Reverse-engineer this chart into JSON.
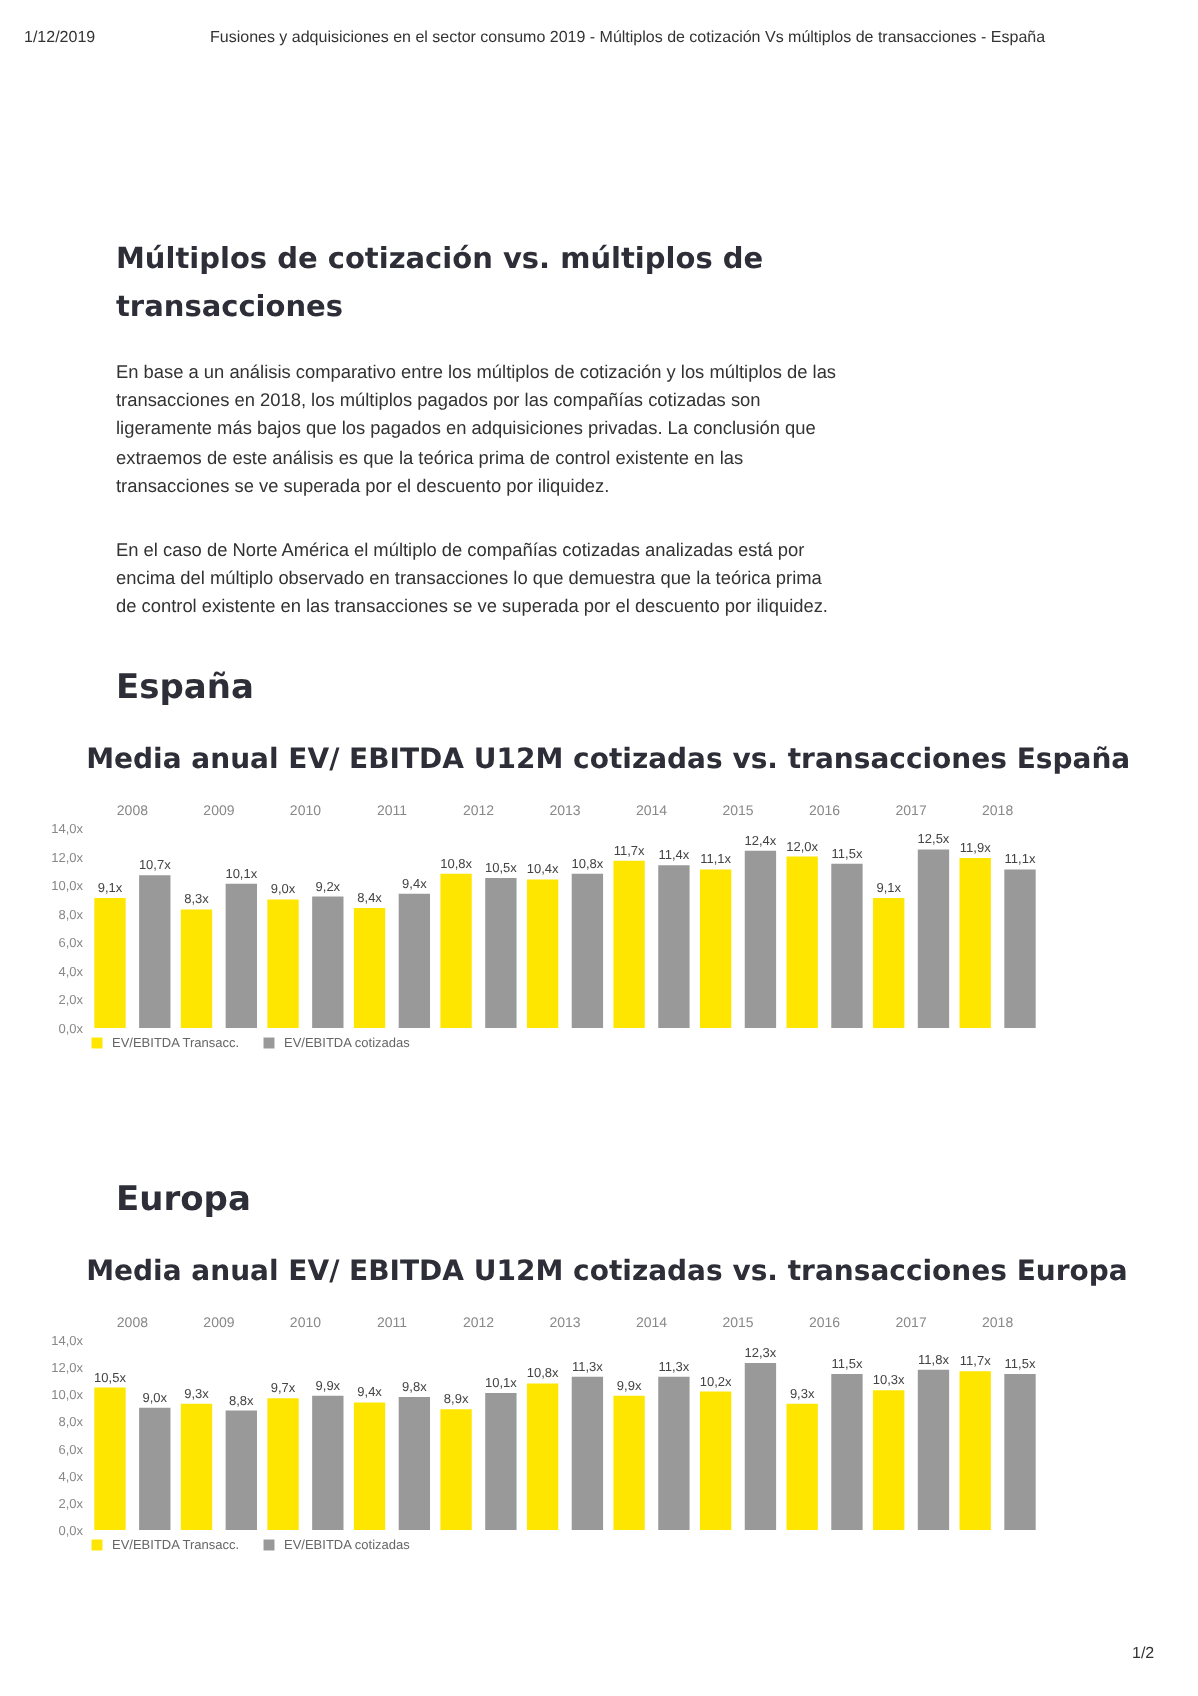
{
  "chart_data": [
    {
      "type": "bar",
      "title": "Media anual EV/ EBITDA U12M cotizadas vs. transacciones España",
      "annotations": [
        "1/12/2019",
        "Fusiones y adquisiciones en el sector consumo 2019 - Múltiplos de cotización Vs múltiplos de transacciones - España",
        "Múltiplos de cotización vs. múltiplos de transacciones",
        "En base a un análisis comparativo entre los múltiplos de cotización y los múltiplos de las transacciones en 2018, los múltiplos pagados por las compañías cotizadas son ligeramente más bajos que los pagados en adquisiciones privadas. La conclusión que extraemos de este análisis es que la teórica prima de control existente en las transacciones se ve superada por el descuento por iliquidez.",
        "En el caso de Norte América el múltiplo de compañías cotizadas analizadas está por encima del múltiplo observado en transacciones lo que demuestra que la teórica prima de control existente en las transacciones se ve superada por el descuento por iliquidez.",
        "España"
      ],
      "categories": [
        "2008",
        "2009",
        "2010",
        "2011",
        "2012",
        "2013",
        "2014",
        "2015",
        "2016",
        "2017",
        "2018"
      ],
      "series": [
        {
          "name": "EV/EBITDA Transacc.",
          "color": "#ffe600",
          "values": [
            9.1,
            8.3,
            9.0,
            8.4,
            10.8,
            10.4,
            11.7,
            11.1,
            12.0,
            9.1,
            11.9
          ],
          "value_labels": [
            "9,1x",
            "8,3x",
            "9,0x",
            "8,4x",
            "10,8x",
            "10,4x",
            "11,7x",
            "11,1x",
            "12,0x",
            "9,1x",
            "11,9x"
          ]
        },
        {
          "name": "EV/EBITDA cotizadas",
          "color": "#999999",
          "values": [
            10.7,
            10.1,
            9.2,
            9.4,
            10.5,
            10.8,
            11.4,
            12.4,
            11.5,
            12.5,
            11.1
          ],
          "value_labels": [
            "10,7x",
            "10,1x",
            "9,2x",
            "9,4x",
            "10,5x",
            "10,8x",
            "11,4x",
            "12,4x",
            "11,5x",
            "12,5x",
            "11,1x"
          ]
        }
      ],
      "ylim": [
        0,
        14
      ],
      "yticks": [
        {
          "value": 0,
          "label": "0,0x"
        },
        {
          "value": 2,
          "label": "2,0x"
        },
        {
          "value": 4,
          "label": "4,0x"
        },
        {
          "value": 6,
          "label": "6,0x"
        },
        {
          "value": 8,
          "label": "8,0x"
        },
        {
          "value": 10,
          "label": "10,0x"
        },
        {
          "value": 12,
          "label": "12,0x"
        },
        {
          "value": 14,
          "label": "14,0x"
        }
      ],
      "legend": "bottom left"
    },
    {
      "type": "bar",
      "title": "Media anual EV/ EBITDA U12M cotizadas vs. transacciones Europa",
      "annotations": [
        "Europa",
        "1/2"
      ],
      "categories": [
        "2008",
        "2009",
        "2010",
        "2011",
        "2012",
        "2013",
        "2014",
        "2015",
        "2016",
        "2017",
        "2018"
      ],
      "series": [
        {
          "name": "EV/EBITDA Transacc.",
          "color": "#ffe600",
          "values": [
            10.5,
            9.3,
            9.7,
            9.4,
            8.9,
            10.8,
            9.9,
            10.2,
            9.3,
            10.3,
            11.7
          ],
          "value_labels": [
            "10,5x",
            "9,3x",
            "9,7x",
            "9,4x",
            "8,9x",
            "10,8x",
            "9,9x",
            "10,2x",
            "9,3x",
            "10,3x",
            "11,7x"
          ]
        },
        {
          "name": "EV/EBITDA cotizadas",
          "color": "#999999",
          "values": [
            9.0,
            8.8,
            9.9,
            9.8,
            10.1,
            11.3,
            11.3,
            12.3,
            11.5,
            11.8,
            11.5
          ],
          "value_labels": [
            "9,0x",
            "8,8x",
            "9,9x",
            "9,8x",
            "10,1x",
            "11,3x",
            "11,3x",
            "12,3x",
            "11,5x",
            "11,8x",
            "11,5x"
          ]
        }
      ],
      "ylim": [
        0,
        14
      ],
      "yticks": [
        {
          "value": 0,
          "label": "0,0x"
        },
        {
          "value": 2,
          "label": "2,0x"
        },
        {
          "value": 4,
          "label": "4,0x"
        },
        {
          "value": 6,
          "label": "6,0x"
        },
        {
          "value": 8,
          "label": "8,0x"
        },
        {
          "value": 10,
          "label": "10,0x"
        },
        {
          "value": 12,
          "label": "12,0x"
        },
        {
          "value": 14,
          "label": "14,0x"
        }
      ],
      "legend": "bottom left"
    }
  ]
}
